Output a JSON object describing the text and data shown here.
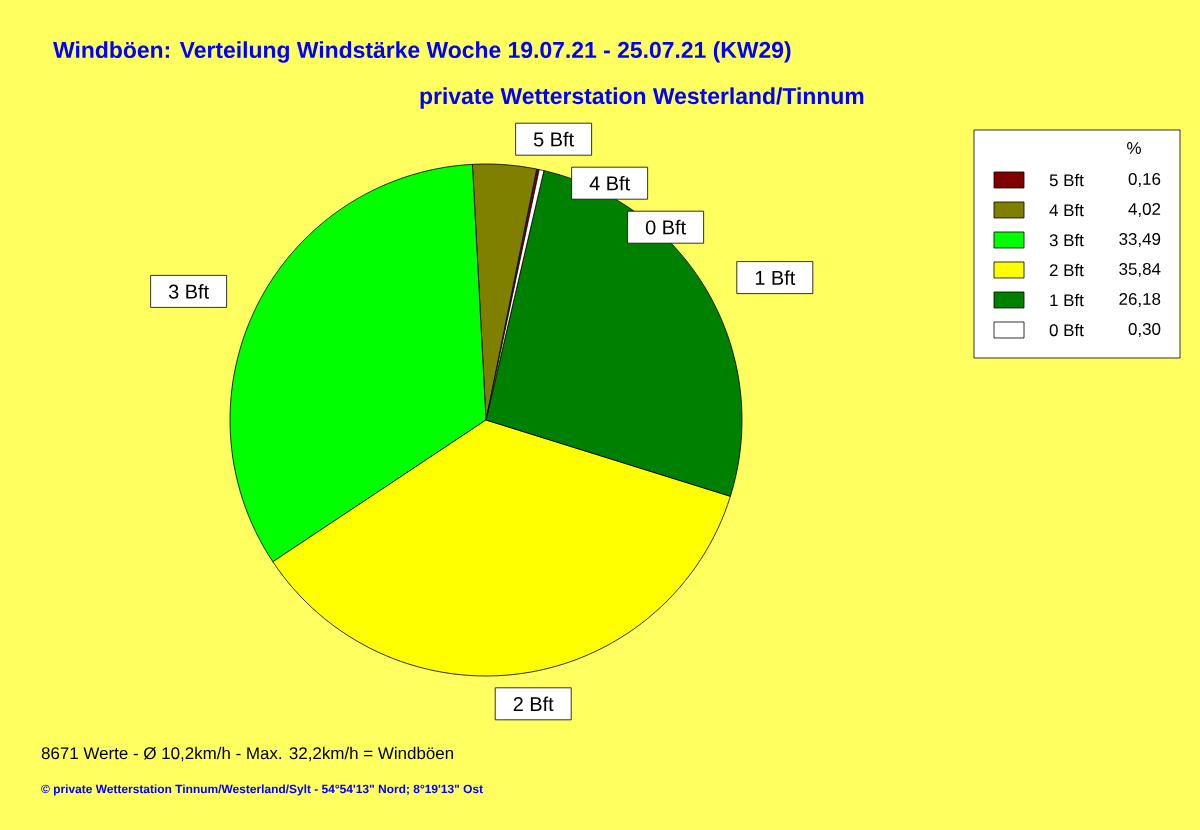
{
  "chart_data": {
    "type": "pie",
    "title": "Windböen: Verteilung Windstärke  Woche 19.07.21 - 25.07.21 (KW29)",
    "subtitle": "private Wetterstation Westerland/Tinnum",
    "categories": [
      "5 Bft",
      "4 Bft",
      "3 Bft",
      "2 Bft",
      "1 Bft",
      "0 Bft"
    ],
    "values": [
      0.16,
      4.02,
      33.49,
      35.84,
      26.18,
      0.3
    ],
    "value_labels": [
      "0,16",
      "4,02",
      "33,49",
      "35,84",
      "26,18",
      "0,30"
    ],
    "colors": [
      "#800000",
      "#808000",
      "#00ff00",
      "#ffff00",
      "#008000",
      "#ffffff"
    ],
    "legend": "top right",
    "legend_title": "%",
    "annotations": [
      "8671 Werte   -   Ø 10,2km/h  -  Max. 32,2km/h = Windböen",
      "© private Wetterstation Tinnum/Westerland/Sylt   -   54°54'13\" Nord; 8°19'13\" Ost"
    ]
  }
}
